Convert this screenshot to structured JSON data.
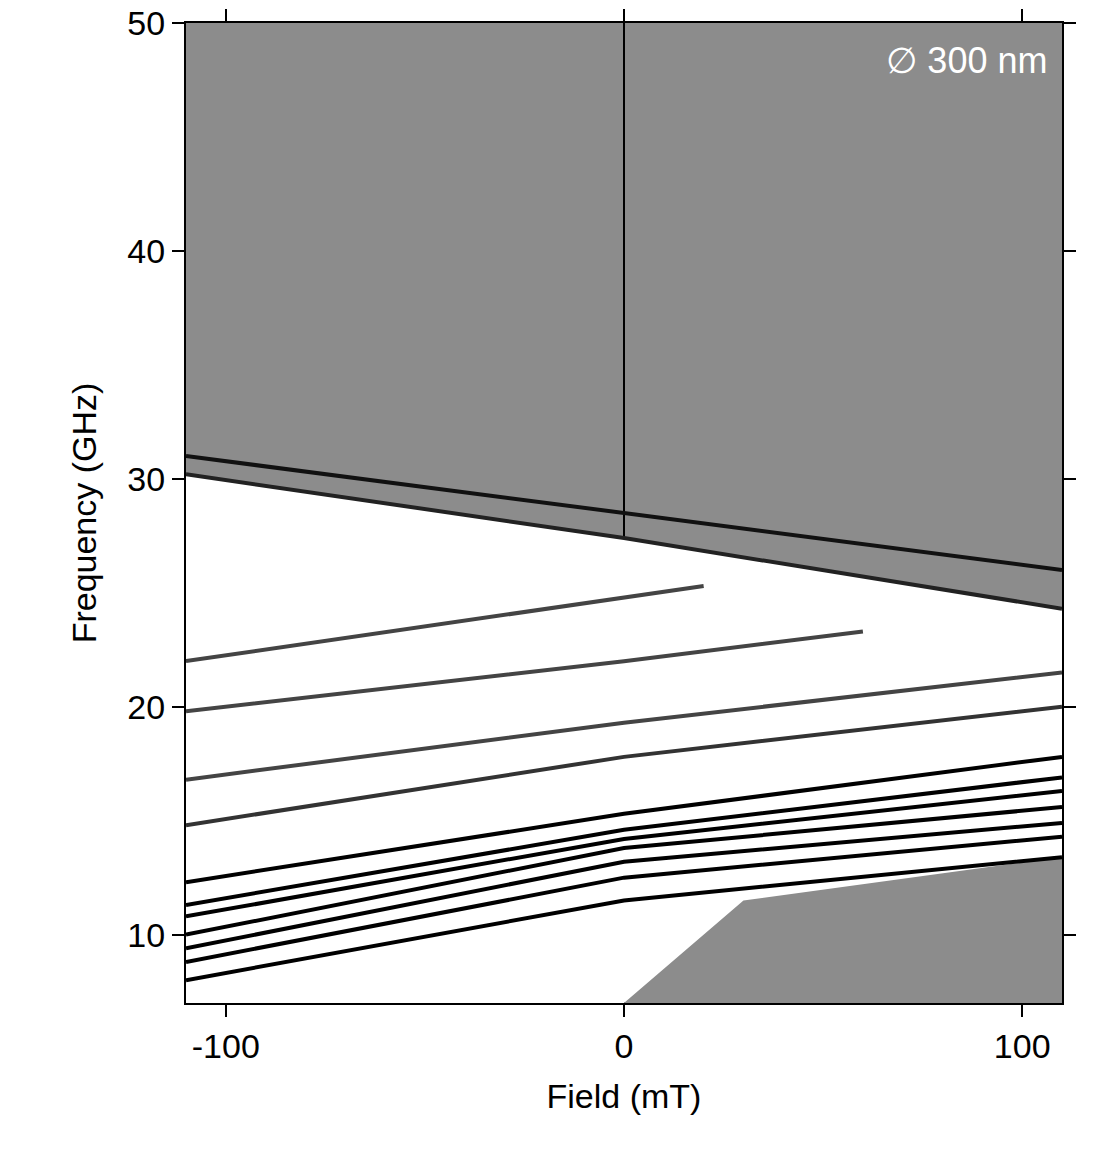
{
  "chart_data": {
    "type": "line",
    "x_label": "Field (mT)",
    "y_label": "Frequency (GHz)",
    "annotation": "∅ 300 nm",
    "xlim": [
      -110,
      110
    ],
    "ylim": [
      7,
      50
    ],
    "xticks": [
      -100,
      0,
      100
    ],
    "yticks": [
      10,
      20,
      30,
      40,
      50
    ],
    "grid": false,
    "series": [
      {
        "type": "area",
        "color": "#ffffff",
        "x": [
          -110,
          0,
          110,
          110,
          30,
          0,
          -110
        ],
        "values": [
          30.2,
          27.4,
          24.3,
          13.4,
          11.5,
          7,
          7
        ]
      },
      {
        "color": "#111111",
        "x": [
          -110,
          0,
          110
        ],
        "values": [
          31.0,
          28.5,
          26.0
        ]
      },
      {
        "color": "#222222",
        "x": [
          -110,
          0,
          110
        ],
        "values": [
          30.2,
          27.4,
          24.3
        ]
      },
      {
        "color": "#000000",
        "x": [
          -110,
          0,
          110
        ],
        "values": [
          8.0,
          11.5,
          13.4
        ]
      },
      {
        "color": "#000000",
        "x": [
          -110,
          0,
          110
        ],
        "values": [
          8.8,
          12.5,
          14.3
        ]
      },
      {
        "color": "#000000",
        "x": [
          -110,
          0,
          110
        ],
        "values": [
          9.4,
          13.2,
          14.9
        ]
      },
      {
        "color": "#000000",
        "x": [
          -110,
          0,
          110
        ],
        "values": [
          10.0,
          13.8,
          15.6
        ]
      },
      {
        "color": "#000000",
        "x": [
          -110,
          0,
          110
        ],
        "values": [
          10.8,
          14.2,
          16.3
        ]
      },
      {
        "color": "#000000",
        "x": [
          -110,
          0,
          110
        ],
        "values": [
          11.3,
          14.6,
          16.9
        ]
      },
      {
        "color": "#000000",
        "x": [
          -110,
          0,
          110
        ],
        "values": [
          12.3,
          15.3,
          17.8
        ]
      },
      {
        "color": "#333333",
        "x": [
          -110,
          0,
          110
        ],
        "values": [
          14.8,
          17.8,
          20.0
        ]
      },
      {
        "color": "#444444",
        "x": [
          -110,
          0,
          110
        ],
        "values": [
          16.8,
          19.3,
          21.5
        ]
      },
      {
        "color": "#444444",
        "x": [
          -110,
          0,
          60
        ],
        "values": [
          19.8,
          22.0,
          23.3
        ]
      },
      {
        "color": "#444444",
        "x": [
          -110,
          0,
          20
        ],
        "values": [
          22.0,
          24.8,
          25.3
        ]
      }
    ]
  }
}
